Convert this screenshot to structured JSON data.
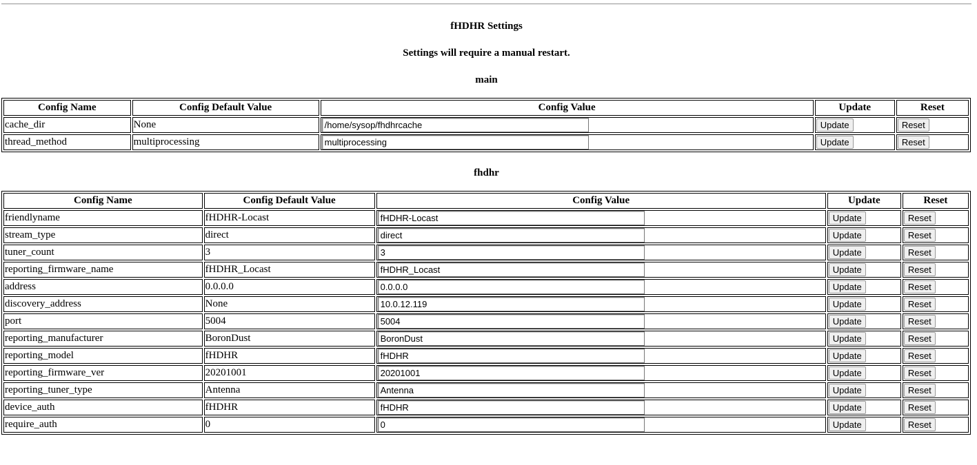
{
  "title": "fHDHR Settings",
  "notice": "Settings will require a manual restart.",
  "headers": [
    "Config Name",
    "Config Default Value",
    "Config Value",
    "Update",
    "Reset"
  ],
  "update_label": "Update",
  "reset_label": "Reset",
  "sections": [
    {
      "name": "main",
      "rows": [
        [
          "cache_dir",
          "None",
          "/home/sysop/fhdhrcache"
        ],
        [
          "thread_method",
          "multiprocessing",
          "multiprocessing"
        ]
      ]
    },
    {
      "name": "fhdhr",
      "rows": [
        [
          "friendlyname",
          "fHDHR-Locast",
          "fHDHR-Locast"
        ],
        [
          "stream_type",
          "direct",
          "direct"
        ],
        [
          "tuner_count",
          "3",
          "3"
        ],
        [
          "reporting_firmware_name",
          "fHDHR_Locast",
          "fHDHR_Locast"
        ],
        [
          "address",
          "0.0.0.0",
          "0.0.0.0"
        ],
        [
          "discovery_address",
          "None",
          "10.0.12.119"
        ],
        [
          "port",
          "5004",
          "5004"
        ],
        [
          "reporting_manufacturer",
          "BoronDust",
          "BoronDust"
        ],
        [
          "reporting_model",
          "fHDHR",
          "fHDHR"
        ],
        [
          "reporting_firmware_ver",
          "20201001",
          "20201001"
        ],
        [
          "reporting_tuner_type",
          "Antenna",
          "Antenna"
        ],
        [
          "device_auth",
          "fHDHR",
          "fHDHR"
        ],
        [
          "require_auth",
          "0",
          "0"
        ]
      ]
    }
  ]
}
